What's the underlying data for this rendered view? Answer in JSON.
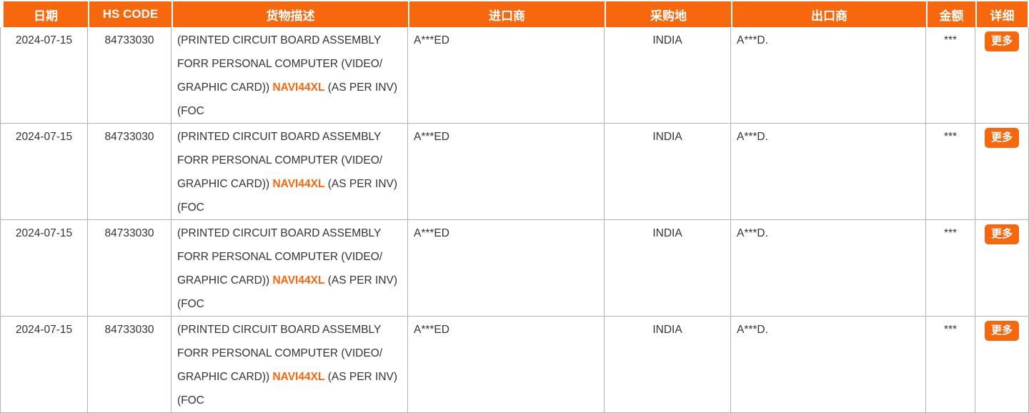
{
  "theme": {
    "accent": "#f7670e",
    "header_text_color": "#ffffff",
    "body_text_color": "#333333",
    "grid_color": "#b3b3b3"
  },
  "table": {
    "columns": [
      {
        "key": "date",
        "label": "日期"
      },
      {
        "key": "hs_code",
        "label": "HS CODE"
      },
      {
        "key": "description",
        "label": "货物描述"
      },
      {
        "key": "importer",
        "label": "进口商"
      },
      {
        "key": "origin",
        "label": "采购地"
      },
      {
        "key": "exporter",
        "label": "出口商"
      },
      {
        "key": "amount",
        "label": "金额"
      },
      {
        "key": "detail",
        "label": "详细"
      }
    ],
    "rows": [
      {
        "date": "2024-07-15",
        "hs_code": "84733030",
        "description_segments": [
          {
            "text": "(PRINTED CIRCUIT BOARD ASSEMBLY FORR PERSONAL COMPUTER (VIDEO/ GRAPHIC CARD)) ",
            "highlight": false
          },
          {
            "text": "NAVI44XL",
            "highlight": true
          },
          {
            "text": " (AS PER INV) (FOC",
            "highlight": false
          }
        ],
        "importer": "A***ED",
        "origin": "INDIA",
        "exporter": "A***D.",
        "amount": "***",
        "more_label": "更多"
      },
      {
        "date": "2024-07-15",
        "hs_code": "84733030",
        "description_segments": [
          {
            "text": "(PRINTED CIRCUIT BOARD ASSEMBLY FORR PERSONAL COMPUTER (VIDEO/ GRAPHIC CARD)) ",
            "highlight": false
          },
          {
            "text": "NAVI44XL",
            "highlight": true
          },
          {
            "text": " (AS PER INV) (FOC",
            "highlight": false
          }
        ],
        "importer": "A***ED",
        "origin": "INDIA",
        "exporter": "A***D.",
        "amount": "***",
        "more_label": "更多"
      },
      {
        "date": "2024-07-15",
        "hs_code": "84733030",
        "description_segments": [
          {
            "text": "(PRINTED CIRCUIT BOARD ASSEMBLY FORR PERSONAL COMPUTER (VIDEO/ GRAPHIC CARD)) ",
            "highlight": false
          },
          {
            "text": "NAVI44XL",
            "highlight": true
          },
          {
            "text": " (AS PER INV) (FOC",
            "highlight": false
          }
        ],
        "importer": "A***ED",
        "origin": "INDIA",
        "exporter": "A***D.",
        "amount": "***",
        "more_label": "更多"
      },
      {
        "date": "2024-07-15",
        "hs_code": "84733030",
        "description_segments": [
          {
            "text": "(PRINTED CIRCUIT BOARD ASSEMBLY FORR PERSONAL COMPUTER (VIDEO/ GRAPHIC CARD)) ",
            "highlight": false
          },
          {
            "text": "NAVI44XL",
            "highlight": true
          },
          {
            "text": " (AS PER INV) (FOC",
            "highlight": false
          }
        ],
        "importer": "A***ED",
        "origin": "INDIA",
        "exporter": "A***D.",
        "amount": "***",
        "more_label": "更多"
      }
    ]
  }
}
